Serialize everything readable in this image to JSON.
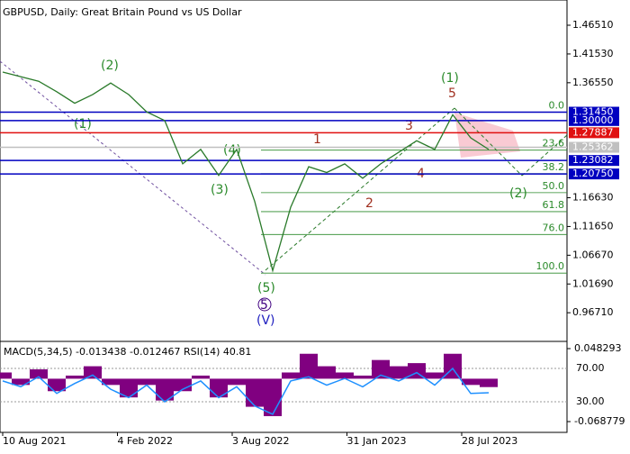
{
  "chart_data": {
    "type": "line",
    "title": "GBPUSD, Daily:  Great Britain Pound vs US Dollar",
    "series": [
      {
        "color": "#2a7a2a",
        "values": [
          1.384,
          1.376,
          1.368,
          1.35,
          1.33,
          1.345,
          1.365,
          1.345,
          1.315,
          1.3,
          1.225,
          1.25,
          1.205,
          1.25,
          1.16,
          1.04,
          1.15,
          1.22,
          1.21,
          1.225,
          1.2,
          1.225,
          1.245,
          1.265,
          1.25,
          1.31,
          1.27,
          1.25
        ]
      }
    ],
    "ylim": [
      0.919,
      1.5088
    ],
    "yticks": [
      {
        "value": 1.4651,
        "label": "1.46510"
      },
      {
        "value": 1.4153,
        "label": "1.41530"
      },
      {
        "value": 1.3655,
        "label": "1.36550"
      },
      {
        "value": 1.1663,
        "label": "1.16630"
      },
      {
        "value": 1.1165,
        "label": "1.11650"
      },
      {
        "value": 1.0667,
        "label": "1.06670"
      },
      {
        "value": 1.0169,
        "label": "1.01690"
      },
      {
        "value": 0.9671,
        "label": "0.96710"
      }
    ],
    "x_labels": [
      "10 Aug 2021",
      "4 Feb 2022",
      "3 Aug 2022",
      "31 Jan 2023",
      "28 Jul 2023"
    ],
    "levels": [
      {
        "value": 1.3145,
        "label": "1.31450",
        "color": "#0000c0"
      },
      {
        "value": 1.3,
        "label": "1.30000",
        "color": "#0000c0"
      },
      {
        "value": 1.27887,
        "label": "1.27887",
        "color": "#e01010"
      },
      {
        "value": 1.25362,
        "label": "1.25362",
        "color": "#c0c0c0"
      },
      {
        "value": 1.23082,
        "label": "1.23082",
        "color": "#0000c0"
      },
      {
        "value": 1.2075,
        "label": "1.20750",
        "color": "#0000c0"
      }
    ],
    "fib": [
      {
        "value": 1.3145,
        "label": "0.0"
      },
      {
        "value": 1.2487,
        "label": "23.6"
      },
      {
        "value": 1.208,
        "label": "38.2"
      },
      {
        "value": 1.1751,
        "label": "50.0"
      },
      {
        "value": 1.1422,
        "label": "61.8"
      },
      {
        "value": 1.1026,
        "label": "76.0"
      },
      {
        "value": 1.0357,
        "label": "100.0"
      }
    ],
    "annotations": [
      "(2)",
      "(1)",
      "(4)",
      "(3)",
      "(5)",
      "5",
      "(V)",
      "(1)",
      "5",
      "1",
      "3",
      "4",
      "2",
      "(2)"
    ],
    "indicator": {
      "label": "MACD(5,34,5) -0.013438 -0.012467 RSI(14) 40.81",
      "macd_lim": [
        -0.0832,
        0.0584
      ],
      "macd_ticks": [
        0.048293,
        -0.068779
      ],
      "rsi_lim": [
        -4.6,
        101.4
      ],
      "rsi_ticks": [
        {
          "value": 70,
          "label": "70.00"
        },
        {
          "value": 30,
          "label": "30.00"
        }
      ],
      "macd": [
        0.01,
        -0.01,
        0.015,
        -0.02,
        0.005,
        0.02,
        -0.01,
        -0.03,
        -0.01,
        -0.035,
        -0.02,
        0.005,
        -0.03,
        -0.01,
        -0.045,
        -0.06,
        0.01,
        0.04,
        0.02,
        0.01,
        0.005,
        0.03,
        0.02,
        0.025,
        0.01,
        0.04,
        -0.01,
        -0.013438
      ],
      "macd_color": "#800080",
      "rsi": [
        55,
        48,
        60,
        40,
        52,
        62,
        45,
        35,
        50,
        30,
        45,
        55,
        35,
        48,
        25,
        15,
        55,
        60,
        50,
        58,
        48,
        62,
        55,
        65,
        50,
        70,
        40,
        40.81
      ],
      "rsi_color": "#1e90ff"
    }
  }
}
